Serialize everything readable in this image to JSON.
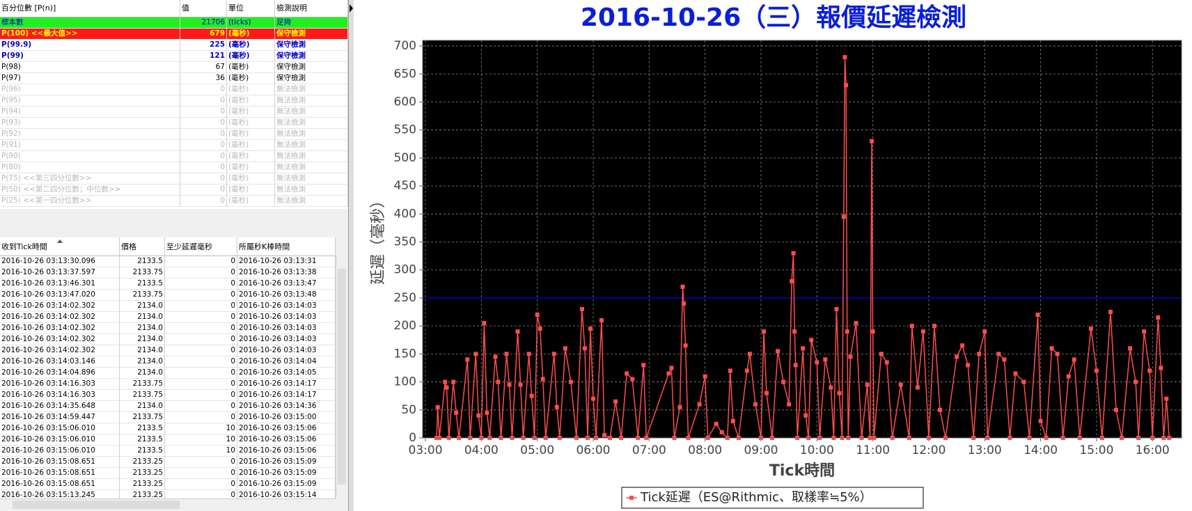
{
  "percentile_table": {
    "headers": [
      "百分位數 [P(n)]",
      "值",
      "單位",
      "檢測說明"
    ],
    "rows": [
      [
        "標本數",
        "21706",
        "(ticks)",
        "足夠"
      ],
      [
        "P(100)  <<最大值>>",
        "679",
        "(毫秒)",
        "保守檢測"
      ],
      [
        "P(99.9)",
        "225",
        "(毫秒)",
        "保守檢測"
      ],
      [
        "P(99)",
        "121",
        "(毫秒)",
        "保守檢測"
      ],
      [
        "P(98)",
        "67",
        "(毫秒)",
        "保守檢測"
      ],
      [
        "P(97)",
        "36",
        "(毫秒)",
        "保守檢測"
      ],
      [
        "P(96)",
        "0",
        "(毫秒)",
        "無法檢測"
      ],
      [
        "P(95)",
        "0",
        "(毫秒)",
        "無法檢測"
      ],
      [
        "P(94)",
        "0",
        "(毫秒)",
        "無法檢測"
      ],
      [
        "P(93)",
        "0",
        "(毫秒)",
        "無法檢測"
      ],
      [
        "P(92)",
        "0",
        "(毫秒)",
        "無法檢測"
      ],
      [
        "P(91)",
        "0",
        "(毫秒)",
        "無法檢測"
      ],
      [
        "P(90)",
        "0",
        "(毫秒)",
        "無法檢測"
      ],
      [
        "P(80)",
        "0",
        "(毫秒)",
        "無法檢測"
      ],
      [
        "P(75)  <<第三四分位數>>",
        "0",
        "(毫秒)",
        "無法檢測"
      ],
      [
        "P(50)  <<第二四分位數；中位數>>",
        "0",
        "(毫秒)",
        "無法檢測"
      ],
      [
        "P(25)  <<第一四分位數>>",
        "0",
        "(毫秒)",
        "無法檢測"
      ]
    ]
  },
  "tick_table": {
    "headers": [
      "收到Tick時間",
      "價格",
      "至少延遲毫秒",
      "所屬秒K棒時間"
    ],
    "rows": [
      [
        "2016-10-26 03:13:30.096",
        "2133.5",
        "0",
        "2016-10-26 03:13:31"
      ],
      [
        "2016-10-26 03:13:37.597",
        "2133.75",
        "0",
        "2016-10-26 03:13:38"
      ],
      [
        "2016-10-26 03:13:46.301",
        "2133.5",
        "0",
        "2016-10-26 03:13:47"
      ],
      [
        "2016-10-26 03:13:47.020",
        "2133.75",
        "0",
        "2016-10-26 03:13:48"
      ],
      [
        "2016-10-26 03:14:02.302",
        "2134.0",
        "0",
        "2016-10-26 03:14:03"
      ],
      [
        "2016-10-26 03:14:02.302",
        "2134.0",
        "0",
        "2016-10-26 03:14:03"
      ],
      [
        "2016-10-26 03:14:02.302",
        "2134.0",
        "0",
        "2016-10-26 03:14:03"
      ],
      [
        "2016-10-26 03:14:02.302",
        "2134.0",
        "0",
        "2016-10-26 03:14:03"
      ],
      [
        "2016-10-26 03:14:02.302",
        "2134.0",
        "0",
        "2016-10-26 03:14:03"
      ],
      [
        "2016-10-26 03:14:03.146",
        "2134.0",
        "0",
        "2016-10-26 03:14:04"
      ],
      [
        "2016-10-26 03:14:04.896",
        "2134.0",
        "0",
        "2016-10-26 03:14:05"
      ],
      [
        "2016-10-26 03:14:16.303",
        "2133.75",
        "0",
        "2016-10-26 03:14:17"
      ],
      [
        "2016-10-26 03:14:16.303",
        "2133.75",
        "0",
        "2016-10-26 03:14:17"
      ],
      [
        "2016-10-26 03:14:35.648",
        "2134.0",
        "0",
        "2016-10-26 03:14:36"
      ],
      [
        "2016-10-26 03:14:59.447",
        "2133.75",
        "0",
        "2016-10-26 03:15:00"
      ],
      [
        "2016-10-26 03:15:06.010",
        "2133.5",
        "10",
        "2016-10-26 03:15:06"
      ],
      [
        "2016-10-26 03:15:06.010",
        "2133.5",
        "10",
        "2016-10-26 03:15:06"
      ],
      [
        "2016-10-26 03:15:06.010",
        "2133.5",
        "10",
        "2016-10-26 03:15:06"
      ],
      [
        "2016-10-26 03:15:08.651",
        "2133.25",
        "0",
        "2016-10-26 03:15:09"
      ],
      [
        "2016-10-26 03:15:08.651",
        "2133.25",
        "0",
        "2016-10-26 03:15:09"
      ],
      [
        "2016-10-26 03:15:08.651",
        "2133.25",
        "0",
        "2016-10-26 03:15:09"
      ],
      [
        "2016-10-26 03:15:13.245",
        "2133.25",
        "0",
        "2016-10-26 03:15:14"
      ]
    ]
  },
  "chart_data": {
    "type": "line",
    "title": "2016-10-26（三）報價延遲檢測",
    "x_label": "Tick時間",
    "y_label": "延遲（毫秒）",
    "xlim": [
      2.95,
      16.52
    ],
    "ylim": [
      0,
      710
    ],
    "xticks": [
      {
        "value": 3,
        "label": "03:00"
      },
      {
        "value": 4,
        "label": "04:00"
      },
      {
        "value": 5,
        "label": "05:00"
      },
      {
        "value": 6,
        "label": "06:00"
      },
      {
        "value": 7,
        "label": "07:00"
      },
      {
        "value": 8,
        "label": "08:00"
      },
      {
        "value": 9,
        "label": "09:00"
      },
      {
        "value": 10,
        "label": "10:00"
      },
      {
        "value": 11,
        "label": "11:00"
      },
      {
        "value": 12,
        "label": "12:00"
      },
      {
        "value": 13,
        "label": "13:00"
      },
      {
        "value": 14,
        "label": "14:00"
      },
      {
        "value": 15,
        "label": "15:00"
      },
      {
        "value": 16,
        "label": "16:00"
      }
    ],
    "yticks": [
      0,
      50,
      100,
      150,
      200,
      250,
      300,
      350,
      400,
      450,
      500,
      550,
      600,
      650,
      700
    ],
    "grid": true,
    "reference_line": {
      "value": 250,
      "color": "#0000cc"
    },
    "legend": "bottom",
    "x": [
      3.2,
      3.22,
      3.25,
      3.35,
      3.38,
      3.42,
      3.5,
      3.55,
      3.6,
      3.75,
      3.8,
      3.9,
      3.95,
      4.0,
      4.05,
      4.1,
      4.15,
      4.25,
      4.3,
      4.35,
      4.45,
      4.5,
      4.55,
      4.65,
      4.7,
      4.75,
      4.85,
      4.9,
      4.95,
      5.0,
      5.05,
      5.1,
      5.15,
      5.3,
      5.35,
      5.4,
      5.5,
      5.6,
      5.7,
      5.8,
      5.85,
      5.9,
      5.95,
      6.0,
      6.05,
      6.15,
      6.2,
      6.3,
      6.4,
      6.5,
      6.6,
      6.7,
      6.8,
      6.9,
      6.95,
      7.35,
      7.4,
      7.45,
      7.55,
      7.6,
      7.62,
      7.65,
      7.7,
      7.9,
      8.0,
      8.05,
      8.2,
      8.3,
      8.4,
      8.45,
      8.5,
      8.6,
      8.75,
      8.8,
      8.9,
      9.0,
      9.05,
      9.1,
      9.2,
      9.3,
      9.4,
      9.5,
      9.55,
      9.58,
      9.6,
      9.62,
      9.65,
      9.75,
      9.8,
      9.85,
      9.9,
      10.0,
      10.05,
      10.15,
      10.25,
      10.3,
      10.35,
      10.4,
      10.45,
      10.48,
      10.5,
      10.52,
      10.54,
      10.56,
      10.6,
      10.7,
      10.8,
      10.9,
      10.95,
      10.98,
      11.0,
      11.02,
      11.15,
      11.25,
      11.35,
      11.5,
      11.65,
      11.7,
      11.8,
      11.9,
      12.0,
      12.1,
      12.2,
      12.3,
      12.5,
      12.6,
      12.7,
      12.8,
      12.9,
      13.0,
      13.05,
      13.25,
      13.35,
      13.45,
      13.55,
      13.7,
      13.8,
      13.95,
      14.0,
      14.1,
      14.2,
      14.3,
      14.4,
      14.5,
      14.6,
      14.7,
      14.9,
      15.0,
      15.1,
      15.25,
      15.35,
      15.45,
      15.6,
      15.7,
      15.75,
      15.85,
      15.95,
      16.0,
      16.1,
      16.15,
      16.2,
      16.25,
      16.3
    ],
    "series": [
      {
        "name": "Tick延遲（ES@Rithmic、取樣率≒5%）",
        "color": "#ff4d4d",
        "values": [
          0,
          55,
          0,
          100,
          90,
          0,
          100,
          45,
          0,
          140,
          0,
          150,
          40,
          0,
          205,
          45,
          0,
          145,
          100,
          0,
          150,
          95,
          0,
          190,
          95,
          0,
          150,
          75,
          0,
          220,
          195,
          105,
          0,
          150,
          55,
          0,
          160,
          100,
          0,
          230,
          160,
          0,
          195,
          70,
          0,
          210,
          5,
          0,
          65,
          0,
          115,
          105,
          0,
          130,
          0,
          115,
          125,
          0,
          55,
          270,
          240,
          165,
          0,
          60,
          110,
          0,
          25,
          10,
          0,
          120,
          30,
          0,
          120,
          150,
          60,
          0,
          190,
          80,
          0,
          155,
          100,
          60,
          280,
          330,
          190,
          130,
          0,
          160,
          40,
          0,
          175,
          135,
          0,
          140,
          90,
          0,
          230,
          80,
          0,
          395,
          680,
          630,
          190,
          0,
          145,
          205,
          0,
          95,
          0,
          530,
          190,
          0,
          150,
          135,
          0,
          95,
          0,
          200,
          90,
          190,
          0,
          200,
          50,
          0,
          145,
          165,
          130,
          0,
          150,
          190,
          0,
          150,
          140,
          0,
          115,
          100,
          0,
          220,
          30,
          0,
          160,
          150,
          0,
          110,
          140,
          0,
          195,
          120,
          0,
          225,
          50,
          0,
          160,
          100,
          0,
          190,
          120,
          0,
          215,
          125,
          0,
          70,
          0
        ]
      }
    ]
  }
}
